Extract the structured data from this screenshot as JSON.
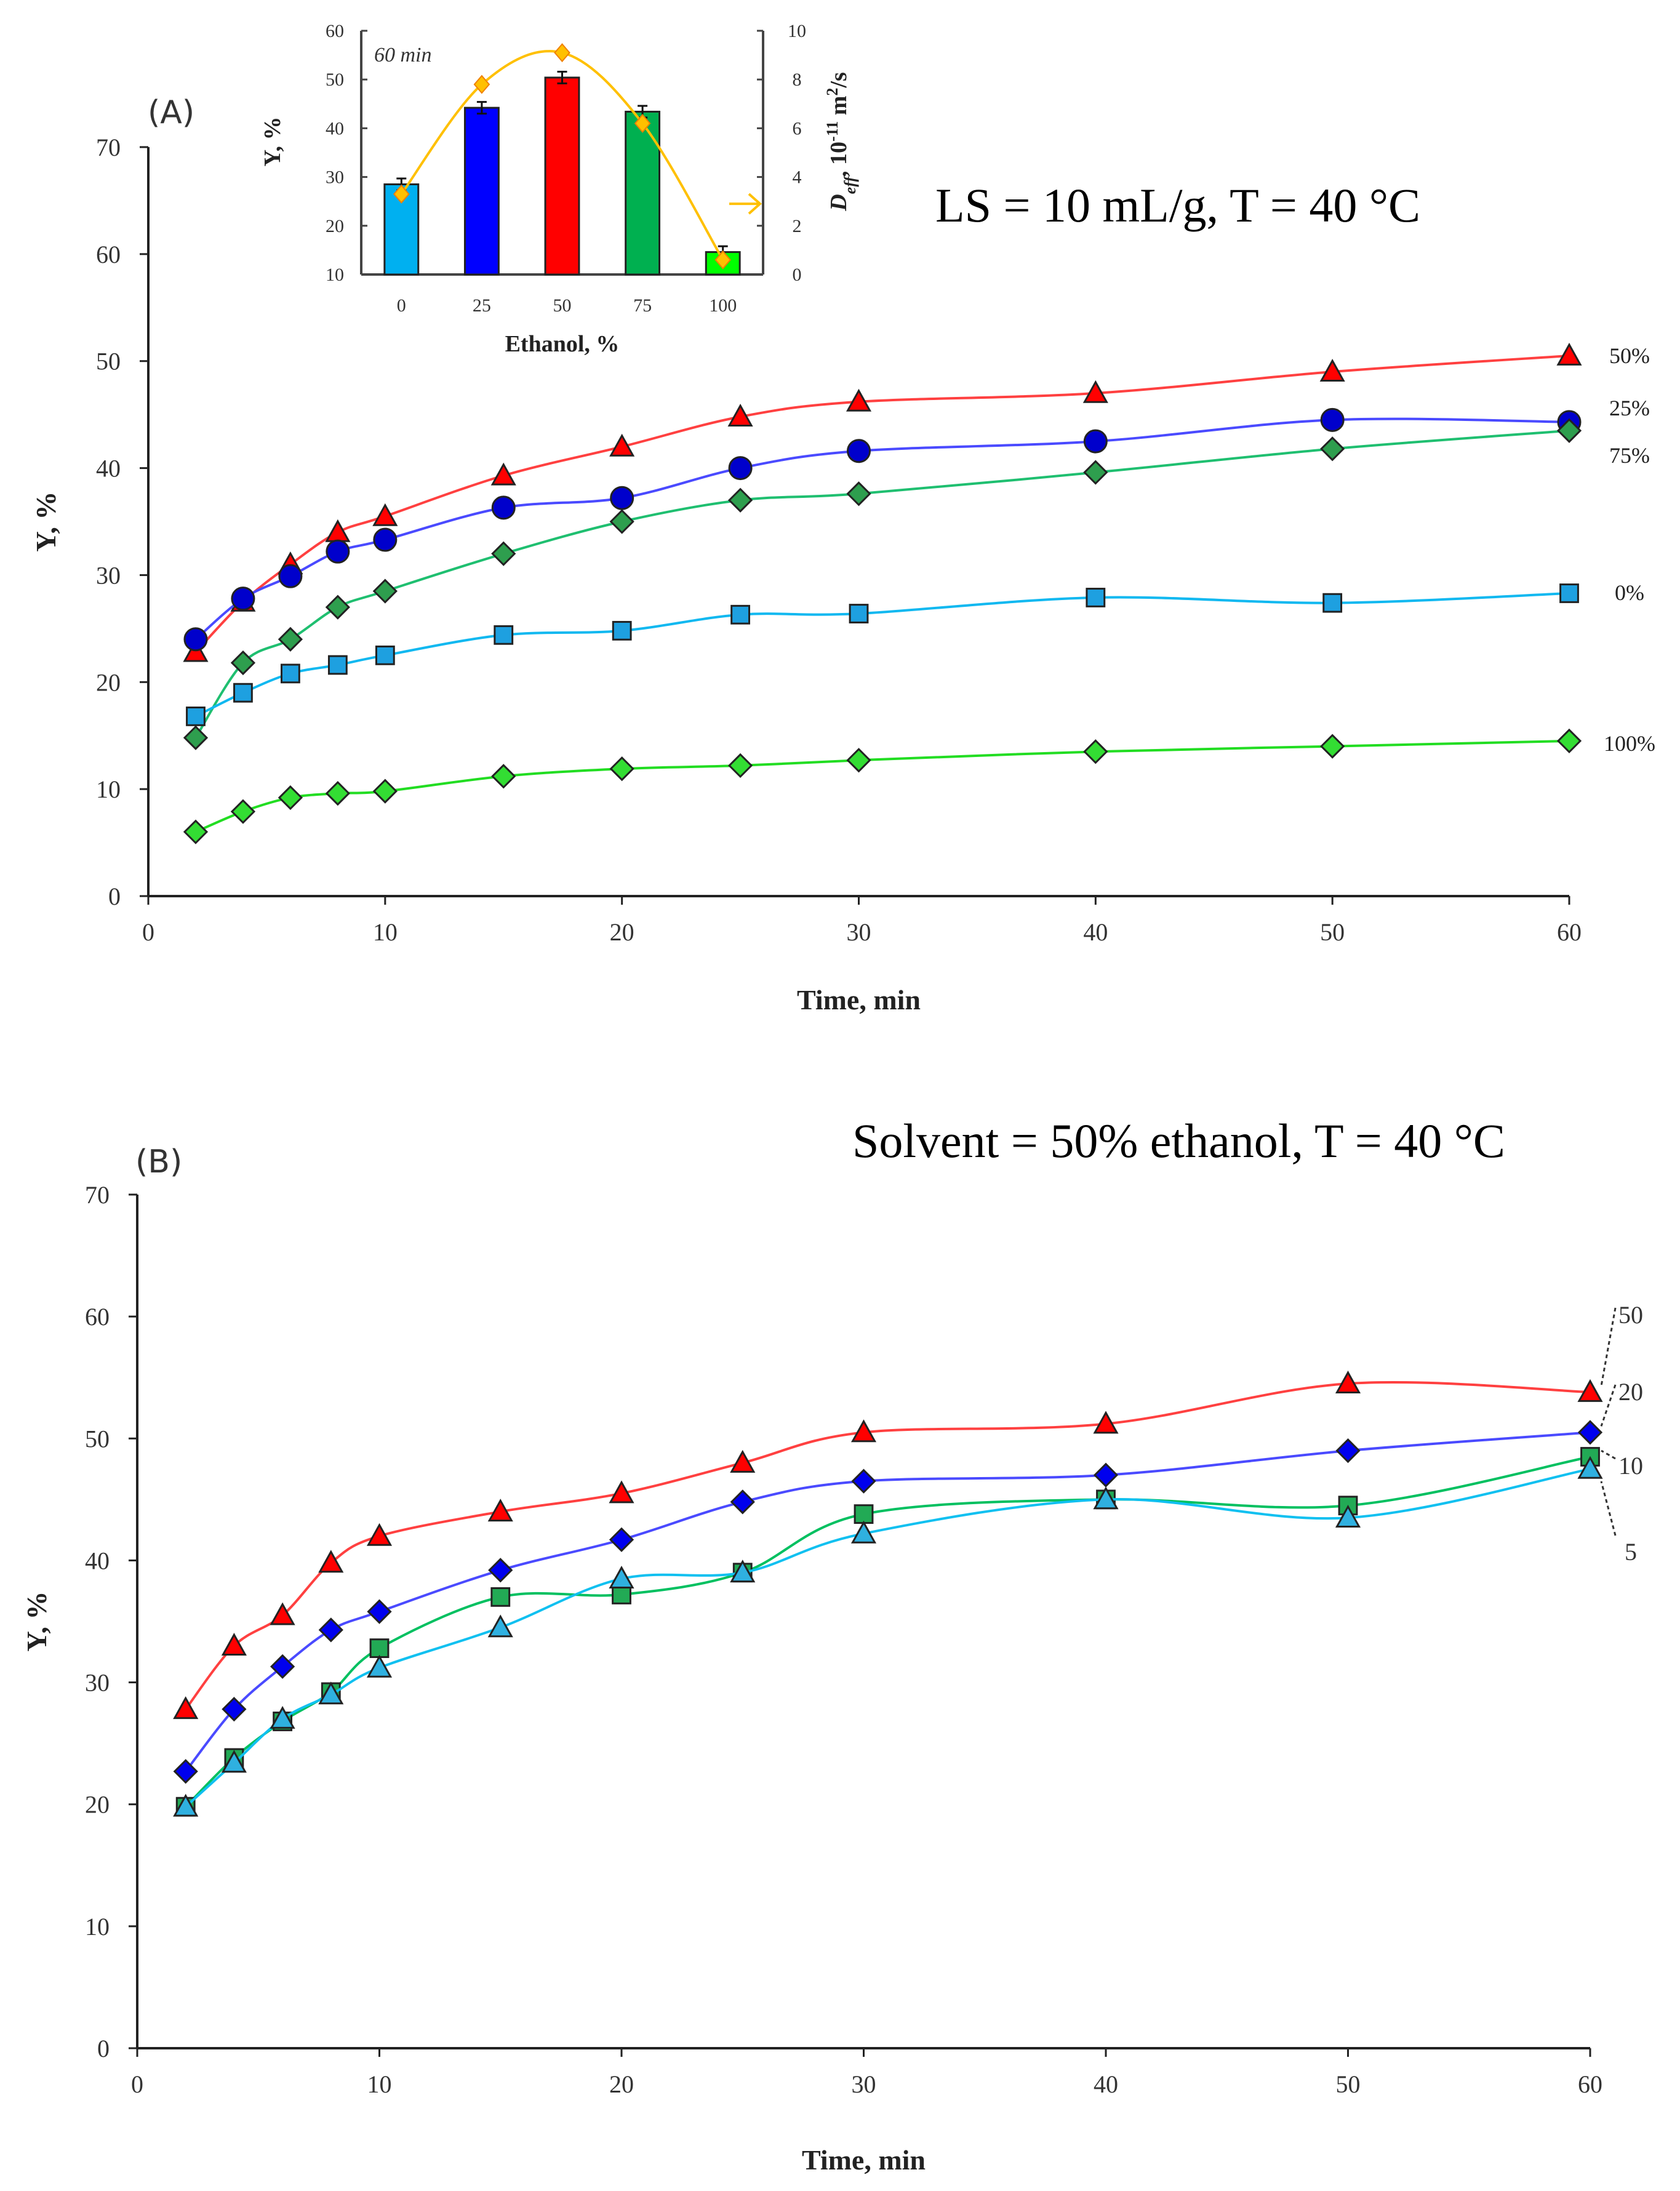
{
  "chart_data": [
    {
      "type": "line",
      "panel_label": "(A)",
      "annotation": "LS = 10 mL/g, T = 40 °C",
      "xlabel": "Time, min",
      "ylabel": "Y, %",
      "xlim": [
        0,
        60
      ],
      "ylim": [
        0,
        70
      ],
      "xticks": [
        0,
        10,
        20,
        30,
        40,
        50,
        60
      ],
      "yticks": [
        0,
        10,
        20,
        30,
        40,
        50,
        60,
        70
      ],
      "x": [
        2,
        4,
        6,
        8,
        10,
        15,
        20,
        25,
        30,
        40,
        50,
        60
      ],
      "series": [
        {
          "name": "50%",
          "marker": "triangle",
          "color": "#ff0000",
          "line_color": "#ff4040",
          "values": [
            22.8,
            27.5,
            31,
            34,
            35.5,
            39.3,
            42,
            44.8,
            46.2,
            47,
            49,
            50.5
          ]
        },
        {
          "name": "25%",
          "marker": "circle",
          "color": "#0000cc",
          "line_color": "#4a4aff",
          "values": [
            24,
            27.8,
            29.9,
            32.2,
            33.3,
            36.3,
            37.2,
            40,
            41.6,
            42.5,
            44.5,
            44.3
          ]
        },
        {
          "name": "75%",
          "marker": "diamond",
          "color": "#2e9e4e",
          "line_color": "#1fbf70",
          "values": [
            14.8,
            21.8,
            24,
            27,
            28.5,
            32,
            35,
            37,
            37.6,
            39.6,
            41.8,
            43.5
          ]
        },
        {
          "name": "0%",
          "marker": "square",
          "color": "#1ea0e0",
          "line_color": "#10b8f0",
          "values": [
            16.8,
            19,
            20.8,
            21.6,
            22.5,
            24.4,
            24.8,
            26.3,
            26.4,
            27.9,
            27.4,
            28.3
          ]
        },
        {
          "name": "100%",
          "marker": "diamond",
          "color": "#33dd33",
          "line_color": "#22dd22",
          "values": [
            6,
            7.9,
            9.2,
            9.6,
            9.8,
            11.2,
            11.9,
            12.2,
            12.7,
            13.5,
            14,
            14.5
          ]
        }
      ],
      "inset": {
        "type": "bar",
        "annotation": "60 min",
        "xlabel": "Ethanol, %",
        "ylabel": "Y, %",
        "y2label": "Deff, 10-11 m2/s",
        "y2label_parts": {
          "main": "D",
          "sub": "eff",
          "rest": ", 10",
          "sup": "-11",
          "unit": " m",
          "sup2": "2",
          "tail": "/s"
        },
        "categories": [
          "0",
          "25",
          "50",
          "75",
          "100"
        ],
        "ylim": [
          10,
          60
        ],
        "yticks": [
          10,
          20,
          30,
          40,
          50,
          60
        ],
        "y2lim": [
          0,
          10
        ],
        "y2ticks": [
          0,
          2,
          4,
          6,
          8,
          10
        ],
        "values": [
          28.5,
          44.2,
          50.4,
          43.4,
          14.6
        ],
        "bar_colors": [
          "#00b0f0",
          "#0000ff",
          "#ff0000",
          "#00b050",
          "#00ff00"
        ],
        "deff_values": [
          3.3,
          7.8,
          9.1,
          6.2,
          0.6
        ],
        "deff_color": "#ffc000"
      }
    },
    {
      "type": "line",
      "panel_label": "(B)",
      "annotation": "Solvent = 50% ethanol, T = 40 °C",
      "xlabel": "Time, min",
      "ylabel": "Y, %",
      "xlim": [
        0,
        60
      ],
      "ylim": [
        0,
        70
      ],
      "xticks": [
        0,
        10,
        20,
        30,
        40,
        50,
        60
      ],
      "yticks": [
        0,
        10,
        20,
        30,
        40,
        50,
        60,
        70
      ],
      "x": [
        2,
        4,
        6,
        8,
        10,
        15,
        20,
        25,
        30,
        40,
        50,
        60
      ],
      "series": [
        {
          "name": "50",
          "marker": "triangle",
          "color": "#ff0000",
          "line_color": "#ff4040",
          "values": [
            27.8,
            33,
            35.5,
            39.8,
            42,
            44,
            45.5,
            48,
            50.5,
            51.2,
            54.5,
            53.8
          ]
        },
        {
          "name": "20",
          "marker": "diamond",
          "color": "#0000ee",
          "line_color": "#4a4aff",
          "values": [
            22.7,
            27.8,
            31.3,
            34.3,
            35.8,
            39.2,
            41.7,
            44.8,
            46.5,
            47,
            49,
            50.5
          ]
        },
        {
          "name": "10",
          "marker": "square",
          "color": "#22aa55",
          "line_color": "#00c060",
          "values": [
            19.8,
            23.8,
            26.8,
            29.2,
            32.8,
            37,
            37.2,
            39,
            43.8,
            45,
            44.5,
            48.5
          ]
        },
        {
          "name": "5",
          "marker": "triangle",
          "color": "#2fb0e0",
          "line_color": "#10c0f0",
          "values": [
            19.8,
            23.4,
            27,
            29,
            31.2,
            34.5,
            38.5,
            39,
            42.2,
            45,
            43.5,
            47.5
          ]
        }
      ]
    }
  ]
}
